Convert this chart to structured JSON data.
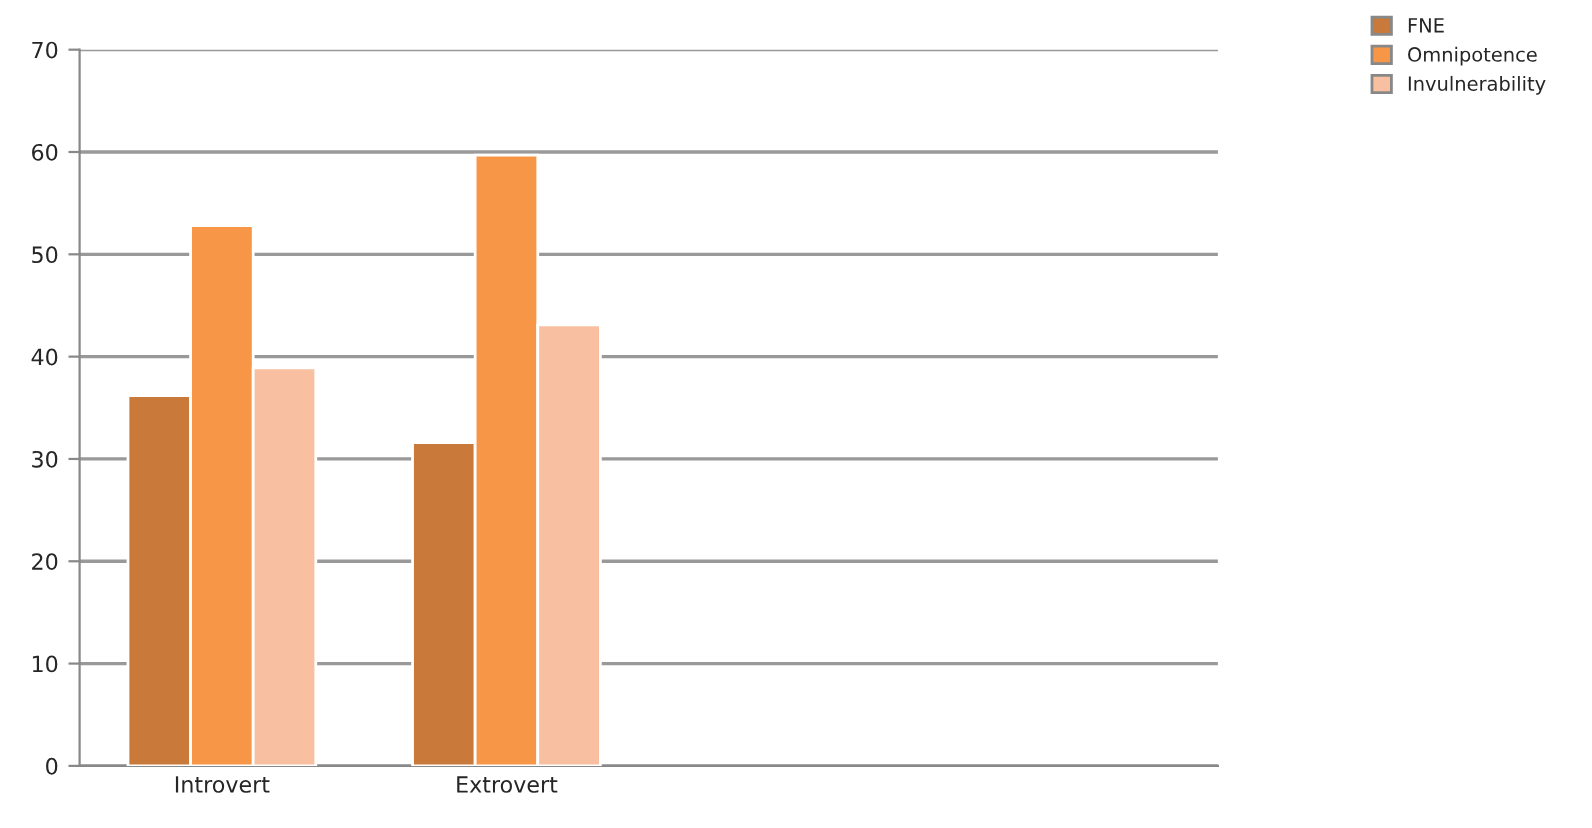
{
  "chart_data": {
    "type": "bar",
    "categories": [
      "Introvert",
      "Extrovert",
      null,
      null
    ],
    "series": [
      {
        "name": "FNE",
        "color": "#c97a3a",
        "values": [
          36.2,
          31.6,
          null,
          null
        ]
      },
      {
        "name": "Omnipotence",
        "color": "#f79646",
        "values": [
          52.8,
          59.7,
          null,
          null
        ]
      },
      {
        "name": "Invulnerability",
        "color": "#f8bfa0",
        "values": [
          38.9,
          43.1,
          null,
          null
        ]
      }
    ],
    "ylim": [
      0,
      70
    ],
    "yticks": [
      0,
      10,
      20,
      30,
      40,
      50,
      60,
      70
    ],
    "grid": "y",
    "legend": "top right"
  }
}
